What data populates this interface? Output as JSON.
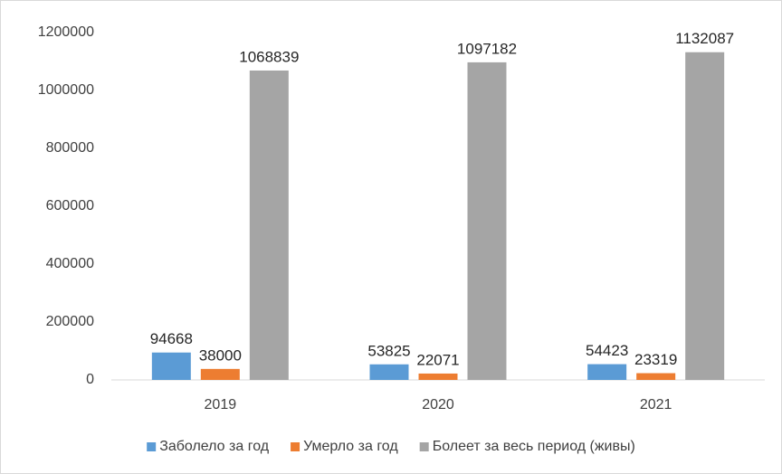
{
  "chart_data": {
    "type": "bar",
    "categories": [
      "2019",
      "2020",
      "2021"
    ],
    "series": [
      {
        "name": "Заболело за год",
        "color": "#5b9bd5",
        "values": [
          94668,
          53825,
          54423
        ]
      },
      {
        "name": "Умерло за год",
        "color": "#ed7d31",
        "values": [
          38000,
          22071,
          23319
        ]
      },
      {
        "name": "Болеет за весь период (живы)",
        "color": "#a5a5a5",
        "values": [
          1068839,
          1097182,
          1132087
        ]
      }
    ],
    "ylim": [
      0,
      1200000
    ],
    "yticks": [
      0,
      200000,
      400000,
      600000,
      800000,
      1000000,
      1200000
    ],
    "grid": false,
    "legend": "bottom"
  }
}
